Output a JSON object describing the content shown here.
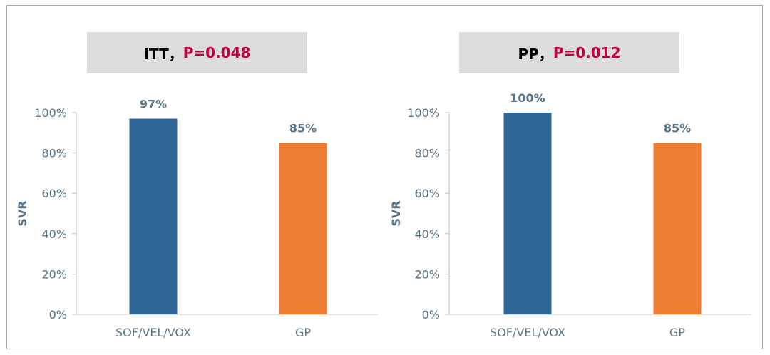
{
  "colors": {
    "series_primary": "#2f6698",
    "series_secondary": "#ed7d31",
    "axis_text": "#5a7488",
    "title_p": "#c00040"
  },
  "chart_data": [
    {
      "type": "bar",
      "title": "ITT，",
      "title_p": "P=0.048",
      "ylabel": "SVR",
      "categories": [
        "SOF/VEL/VOX",
        "GP"
      ],
      "values": [
        97,
        85
      ],
      "data_labels": [
        "97%",
        "85%"
      ],
      "yticks": [
        "0%",
        "20%",
        "40%",
        "60%",
        "80%",
        "100%"
      ],
      "ylim": [
        0,
        100
      ],
      "grid": false
    },
    {
      "type": "bar",
      "title": "PP，",
      "title_p": "P=0.012",
      "ylabel": "SVR",
      "categories": [
        "SOF/VEL/VOX",
        "GP"
      ],
      "values": [
        100,
        85
      ],
      "data_labels": [
        "100%",
        "85%"
      ],
      "yticks": [
        "0%",
        "20%",
        "40%",
        "60%",
        "80%",
        "100%"
      ],
      "ylim": [
        0,
        100
      ],
      "grid": false
    }
  ]
}
